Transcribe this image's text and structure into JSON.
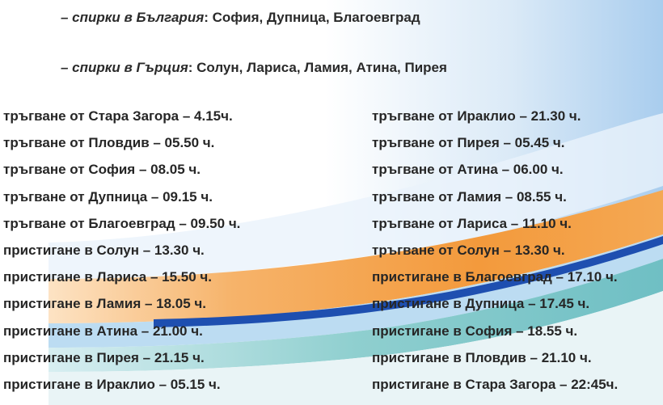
{
  "stops_bulgaria": {
    "lead": "– спирки в България",
    "list": ": София, Дупница, Благоевград"
  },
  "stops_greece": {
    "lead": "– спирки в Гърция",
    "list": ": Солун, Лариса, Ламия, Атина, Пирея"
  },
  "schedule_left": [
    "тръгване от Стара Загора – 4.15ч.",
    "тръгване от Пловдив – 05.50 ч.",
    "тръгване от София – 08.05 ч.",
    "тръгване от Дупница – 09.15 ч.",
    "тръгване от Благоевград – 09.50 ч.",
    "пристигане в Солун – 13.30 ч.",
    "пристигане в Лариса – 15.50 ч.",
    "пристигане в Ламия – 18.05 ч.",
    "пристигане в Атина – 21.00 ч.",
    "пристигане в Пирея – 21.15 ч.",
    "пристигане в Ираклио – 05.15 ч."
  ],
  "schedule_right": [
    "тръгване от Ираклио – 21.30 ч.",
    "тръгване от Пирея – 05.45 ч.",
    "тръгване от Атина – 06.00 ч.",
    "тръгване от Ламия – 08.55 ч.",
    "тръгване от Лариса – 11.10 ч.",
    "тръгване от Солун – 13.30 ч.",
    "пристигане в Благоевград – 17.10 ч.",
    "пристигане в Дупница – 17.45 ч.",
    "пристигане в София – 18.55 ч.",
    "пристигане в Пловдив – 21.10 ч.",
    "пристигане в Стара Загора – 22:45ч."
  ],
  "colors": {
    "orange": "#f39a3c",
    "blue": "#1e4fb0",
    "light_blue": "#bcdcf2",
    "teal": "#8fcfcf"
  }
}
